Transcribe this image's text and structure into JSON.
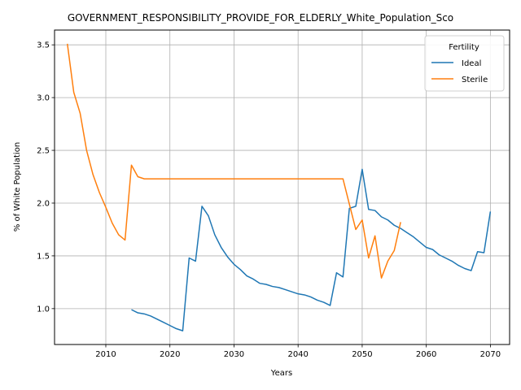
{
  "chart_data": {
    "type": "line",
    "title": "GOVERNMENT_RESPONSIBILITY_PROVIDE_FOR_ELDERLY_White_Population_Sco",
    "xlabel": "Years",
    "ylabel": "% of White Population",
    "xlim": [
      2002,
      2073
    ],
    "ylim": [
      0.66,
      3.64
    ],
    "x_ticks": [
      2010,
      2020,
      2030,
      2040,
      2050,
      2060,
      2070
    ],
    "y_ticks": [
      1.0,
      1.5,
      2.0,
      2.5,
      3.0,
      3.5
    ],
    "x_tick_labels": [
      "2010",
      "2020",
      "2030",
      "2040",
      "2050",
      "2060",
      "2070"
    ],
    "y_tick_labels": [
      "1.0",
      "1.5",
      "2.0",
      "2.5",
      "3.0",
      "3.5"
    ],
    "grid": true,
    "legend": {
      "title": "Fertility",
      "placement": "top-right"
    },
    "series": [
      {
        "name": "Ideal",
        "color": "#1f77b4",
        "x": [
          2014,
          2015,
          2016,
          2017,
          2018,
          2019,
          2020,
          2021,
          2022,
          2023,
          2024,
          2025,
          2026,
          2027,
          2028,
          2029,
          2030,
          2031,
          2032,
          2033,
          2034,
          2035,
          2036,
          2037,
          2038,
          2039,
          2040,
          2041,
          2042,
          2043,
          2044,
          2045,
          2046,
          2047,
          2048,
          2049,
          2050,
          2051,
          2052,
          2053,
          2054,
          2055,
          2056,
          2057,
          2058,
          2059,
          2060,
          2061,
          2062,
          2063,
          2064,
          2065,
          2066,
          2067,
          2068,
          2069,
          2070
        ],
        "y": [
          0.99,
          0.96,
          0.95,
          0.93,
          0.9,
          0.87,
          0.84,
          0.81,
          0.79,
          1.48,
          1.45,
          1.97,
          1.88,
          1.7,
          1.58,
          1.49,
          1.42,
          1.37,
          1.31,
          1.28,
          1.24,
          1.23,
          1.21,
          1.2,
          1.18,
          1.16,
          1.14,
          1.13,
          1.11,
          1.08,
          1.06,
          1.03,
          1.34,
          1.3,
          1.95,
          1.97,
          2.32,
          1.94,
          1.93,
          1.87,
          1.84,
          1.79,
          1.76,
          1.72,
          1.68,
          1.63,
          1.58,
          1.56,
          1.51,
          1.48,
          1.45,
          1.41,
          1.38,
          1.36,
          1.54,
          1.53,
          1.92
        ]
      },
      {
        "name": "Sterile",
        "color": "#ff7f0e",
        "x": [
          2004,
          2005,
          2006,
          2007,
          2008,
          2009,
          2010,
          2011,
          2012,
          2013,
          2014,
          2015,
          2016,
          2017,
          2018,
          2019,
          2020,
          2021,
          2022,
          2023,
          2024,
          2025,
          2026,
          2027,
          2028,
          2029,
          2030,
          2031,
          2032,
          2033,
          2034,
          2035,
          2036,
          2037,
          2038,
          2039,
          2040,
          2041,
          2042,
          2043,
          2044,
          2045,
          2046,
          2047,
          2048,
          2049,
          2050,
          2051,
          2052,
          2053,
          2054,
          2055,
          2056
        ],
        "y": [
          3.51,
          3.05,
          2.85,
          2.5,
          2.27,
          2.1,
          1.96,
          1.81,
          1.7,
          1.65,
          2.36,
          2.25,
          2.23,
          2.23,
          2.23,
          2.23,
          2.23,
          2.23,
          2.23,
          2.23,
          2.23,
          2.23,
          2.23,
          2.23,
          2.23,
          2.23,
          2.23,
          2.23,
          2.23,
          2.23,
          2.23,
          2.23,
          2.23,
          2.23,
          2.23,
          2.23,
          2.23,
          2.23,
          2.23,
          2.23,
          2.23,
          2.23,
          2.23,
          2.23,
          1.99,
          1.75,
          1.84,
          1.48,
          1.69,
          1.29,
          1.45,
          1.55,
          1.82
        ]
      }
    ]
  }
}
